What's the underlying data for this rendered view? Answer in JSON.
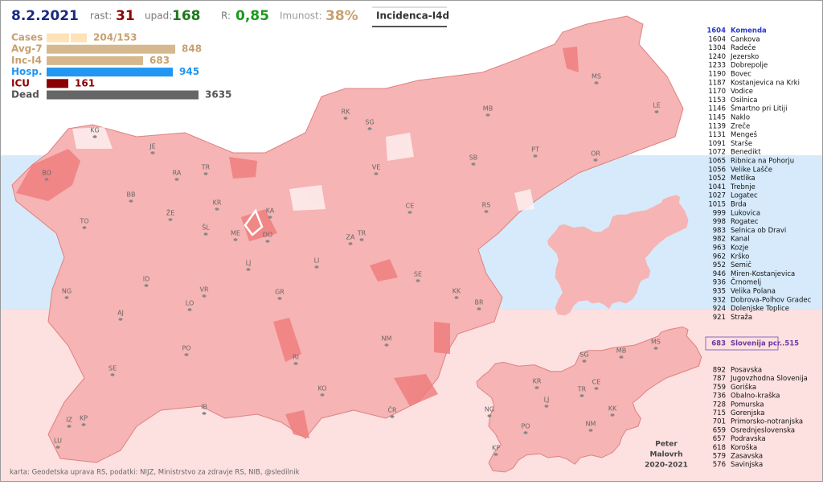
{
  "header": {
    "date": "8.2.2021",
    "rast_label": "rast:",
    "rast": 31,
    "upad_label": "upad:",
    "upad": 168,
    "r_label": "R:",
    "r": "0,85",
    "imunost_label": "Imunost:",
    "imunost": "38%",
    "mode": "Incidenca-I4d"
  },
  "stats": [
    {
      "label": "Cases",
      "value": "204/153"
    },
    {
      "label": "Avg-7",
      "value": 848
    },
    {
      "label": "Inc-I4",
      "value": 683
    },
    {
      "label": "Hosp.",
      "value": 945
    },
    {
      "label": "ICU",
      "value": 161
    },
    {
      "label": "Dead",
      "value": 3635
    }
  ],
  "municipalities": [
    {
      "value": 1604,
      "name": "Komenda"
    },
    {
      "value": 1604,
      "name": "Cankova"
    },
    {
      "value": 1304,
      "name": "Radeče"
    },
    {
      "value": 1240,
      "name": "Jezersko"
    },
    {
      "value": 1233,
      "name": "Dobrepolje"
    },
    {
      "value": 1190,
      "name": "Bovec"
    },
    {
      "value": 1187,
      "name": "Kostanjevica na Krki"
    },
    {
      "value": 1170,
      "name": "Vodice"
    },
    {
      "value": 1153,
      "name": "Osilnica"
    },
    {
      "value": 1146,
      "name": "Šmartno pri Litiji"
    },
    {
      "value": 1145,
      "name": "Naklo"
    },
    {
      "value": 1139,
      "name": "Zreče"
    },
    {
      "value": 1131,
      "name": "Mengeš"
    },
    {
      "value": 1091,
      "name": "Starše"
    },
    {
      "value": 1072,
      "name": "Benedikt"
    },
    {
      "value": 1065,
      "name": "Ribnica na Pohorju"
    },
    {
      "value": 1056,
      "name": "Velike Lašče"
    },
    {
      "value": 1052,
      "name": "Metlika"
    },
    {
      "value": 1041,
      "name": "Trebnje"
    },
    {
      "value": 1027,
      "name": "Logatec"
    },
    {
      "value": 1015,
      "name": "Brda"
    },
    {
      "value": 999,
      "name": "Lukovica"
    },
    {
      "value": 998,
      "name": "Rogatec"
    },
    {
      "value": 983,
      "name": "Selnica ob Dravi"
    },
    {
      "value": 982,
      "name": "Kanal"
    },
    {
      "value": 963,
      "name": "Kozje"
    },
    {
      "value": 962,
      "name": "Krško"
    },
    {
      "value": 952,
      "name": "Semič"
    },
    {
      "value": 946,
      "name": "Miren-Kostanjevica"
    },
    {
      "value": 936,
      "name": "Črnomelj"
    },
    {
      "value": 935,
      "name": "Velika Polana"
    },
    {
      "value": 932,
      "name": "Dobrova-Polhov Gradec"
    },
    {
      "value": 924,
      "name": "Dolenjske Toplice"
    },
    {
      "value": 921,
      "name": "Straža"
    }
  ],
  "national": {
    "value": 683,
    "name": "Slovenija  pcr..515"
  },
  "regions": [
    {
      "value": 892,
      "name": "Posavska"
    },
    {
      "value": 787,
      "name": "Jugovzhodna Slovenija"
    },
    {
      "value": 759,
      "name": "Goriška"
    },
    {
      "value": 736,
      "name": "Obalno-kraška"
    },
    {
      "value": 728,
      "name": "Pomurska"
    },
    {
      "value": 715,
      "name": "Gorenjska"
    },
    {
      "value": 701,
      "name": "Primorsko-notranjska"
    },
    {
      "value": 659,
      "name": "Osrednjeslovenska"
    },
    {
      "value": 657,
      "name": "Podravska"
    },
    {
      "value": 618,
      "name": "Koroška"
    },
    {
      "value": 579,
      "name": "Zasavska"
    },
    {
      "value": 576,
      "name": "Savinjska"
    }
  ],
  "map_labels": [
    "KG",
    "JE",
    "RA",
    "TR",
    "BO",
    "BB",
    "KR",
    "ŽE",
    "KA",
    "TO",
    "ŠL",
    "ME",
    "DO",
    "ZA",
    "TR",
    "LJ",
    "LI",
    "NG",
    "ID",
    "VR",
    "GR",
    "SE",
    "KK",
    "BR",
    "AJ",
    "LO",
    "NM",
    "PO",
    "RI",
    "SE",
    "KO",
    "ČR",
    "IB",
    "IZ",
    "KP",
    "LU",
    "RK",
    "SG",
    "MB",
    "VE",
    "SB",
    "PT",
    "OR",
    "MS",
    "LE",
    "CE",
    "RS"
  ],
  "inset_labels": [
    "SG",
    "MB",
    "MS",
    "KR",
    "CE",
    "TR",
    "LJ",
    "NG",
    "PO",
    "NM",
    "KK",
    "KP"
  ],
  "credits": "karta: Geodetska uprava RS,  podatki: NIJZ, Ministrstvo za zdravje RS, NIB, @sledilnik",
  "author": [
    "Peter",
    "Malovrh",
    "2020-2021"
  ]
}
